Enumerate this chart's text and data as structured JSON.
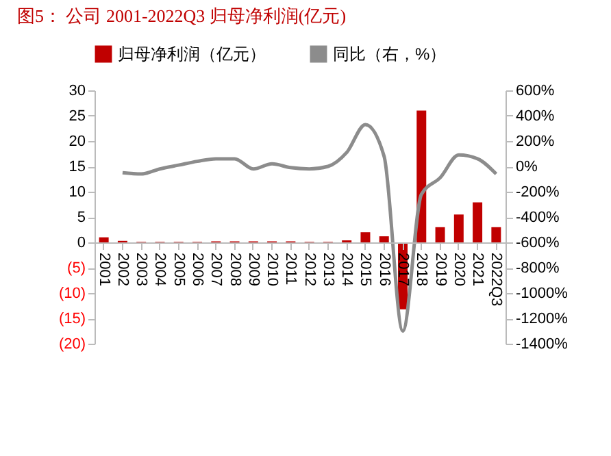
{
  "chart_data": {
    "type": "bar",
    "title": "图5：  公司 2001-2022Q3 归母净利润(亿元)",
    "categories": [
      "2001",
      "2002",
      "2003",
      "2004",
      "2005",
      "2006",
      "2007",
      "2008",
      "2009",
      "2010",
      "2011",
      "2012",
      "2013",
      "2014",
      "2015",
      "2016",
      "2017",
      "2018",
      "2019",
      "2020",
      "2021",
      "2022Q3"
    ],
    "series": [
      {
        "name": "归母净利润（亿元）",
        "color": "#c00000",
        "values": [
          1.0,
          0.3,
          0.1,
          0.1,
          0.1,
          0.1,
          0.2,
          0.2,
          0.2,
          0.2,
          0.2,
          0.1,
          0.1,
          0.4,
          2.0,
          1.2,
          -13.2,
          26.0,
          3.0,
          5.5,
          7.9,
          3.0
        ]
      },
      {
        "name": "同比（右，%）",
        "type": "line",
        "axis": "y2",
        "color": "#8c8c8c",
        "values": [
          null,
          -50,
          -60,
          -20,
          10,
          40,
          60,
          60,
          -20,
          20,
          -10,
          -20,
          0,
          110,
          330,
          80,
          -1300,
          -220,
          -90,
          90,
          60,
          -60
        ]
      }
    ],
    "ylim": [
      -20,
      30
    ],
    "yticks": [
      {
        "value": -20,
        "label": "(20)"
      },
      {
        "value": -15,
        "label": "(15)"
      },
      {
        "value": -10,
        "label": "(10)"
      },
      {
        "value": -5,
        "label": "(5)"
      },
      0,
      5,
      10,
      15,
      20,
      25,
      30
    ],
    "y2lim": [
      -1400,
      600
    ],
    "y2ticks": [
      {
        "value": -1400,
        "label": "-1400%"
      },
      {
        "value": -1200,
        "label": "-1200%"
      },
      {
        "value": -1000,
        "label": "-1000%"
      },
      {
        "value": -800,
        "label": "-800%"
      },
      {
        "value": -600,
        "label": "-600%"
      },
      {
        "value": -400,
        "label": "-400%"
      },
      {
        "value": -200,
        "label": "-200%"
      },
      {
        "value": 0,
        "label": "0%"
      },
      {
        "value": 200,
        "label": "200%"
      },
      {
        "value": 400,
        "label": "400%"
      },
      {
        "value": 600,
        "label": "600%"
      }
    ],
    "legend": "top",
    "grid": false
  }
}
